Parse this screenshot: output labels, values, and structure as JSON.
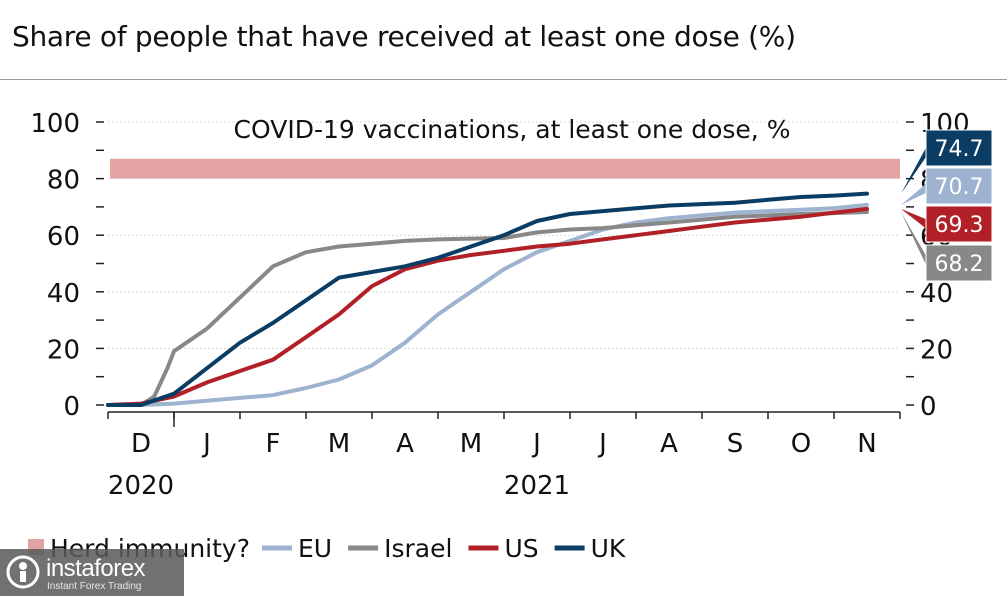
{
  "header": {
    "title": "Share of people that have received at least one dose (%)"
  },
  "chart_data": {
    "type": "line",
    "title": "COVID-19 vaccinations, at least one dose, %",
    "ylim": [
      0,
      100
    ],
    "y_ticks": [
      "0",
      "20",
      "40",
      "60",
      "80",
      "100"
    ],
    "x_month_labels": [
      "D",
      "J",
      "F",
      "M",
      "A",
      "M",
      "J",
      "J",
      "A",
      "S",
      "O",
      "N"
    ],
    "x_year_labels": [
      {
        "label": "2020",
        "month_index": 0
      },
      {
        "label": "2021",
        "month_index": 6
      }
    ],
    "x_range": [
      0,
      12
    ],
    "herd_band": {
      "name": "Herd immunity?",
      "y_range": [
        80,
        87
      ],
      "color": "#e3a3a3"
    },
    "series": [
      {
        "name": "EU",
        "color": "#9db3cf",
        "end_label": "70.7",
        "x": [
          0,
          0.5,
          1.0,
          1.5,
          2.0,
          2.5,
          3.0,
          3.5,
          4.0,
          4.5,
          5.0,
          5.5,
          6.0,
          6.5,
          7.0,
          7.5,
          8.0,
          8.5,
          9.0,
          9.5,
          10.0,
          10.5,
          11.0,
          11.5
        ],
        "values": [
          0,
          0,
          0.5,
          1.5,
          2.5,
          3.5,
          6,
          9,
          14,
          22,
          32,
          40,
          48,
          54,
          58,
          62,
          64.5,
          66,
          67,
          68,
          68.5,
          69,
          69.5,
          70.7
        ]
      },
      {
        "name": "Israel",
        "color": "#888888",
        "end_label": "68.2",
        "x": [
          0,
          0.5,
          0.7,
          0.9,
          1.0,
          1.5,
          2.0,
          2.5,
          3.0,
          3.5,
          4.0,
          4.5,
          5.0,
          5.5,
          6.0,
          6.5,
          7.0,
          7.5,
          8.0,
          8.5,
          9.0,
          9.5,
          10.0,
          10.5,
          11.0,
          11.5
        ],
        "values": [
          0,
          0,
          3,
          13,
          19,
          27,
          38,
          49,
          54,
          56,
          57,
          58,
          58.5,
          58.8,
          59,
          61,
          62,
          62.5,
          63.5,
          64.5,
          65.5,
          66.5,
          67,
          67.5,
          67.8,
          68.2
        ]
      },
      {
        "name": "US",
        "color": "#b02026",
        "end_label": "69.3",
        "x": [
          0,
          0.5,
          1.0,
          1.5,
          2.0,
          2.5,
          3.0,
          3.5,
          4.0,
          4.5,
          5.0,
          5.5,
          6.0,
          6.5,
          7.0,
          7.5,
          8.0,
          8.5,
          9.0,
          9.5,
          10.0,
          10.5,
          11.0,
          11.5
        ],
        "values": [
          0,
          0.5,
          3,
          8,
          12,
          16,
          24,
          32,
          42,
          48,
          51,
          53,
          54.5,
          56,
          57,
          58.5,
          60,
          61.5,
          63,
          64.5,
          65.5,
          66.5,
          68,
          69.3
        ]
      },
      {
        "name": "UK",
        "color": "#0b3d64",
        "end_label": "74.7",
        "x": [
          0,
          0.5,
          1.0,
          1.5,
          2.0,
          2.5,
          3.0,
          3.5,
          4.0,
          4.5,
          5.0,
          5.5,
          6.0,
          6.5,
          7.0,
          7.5,
          8.0,
          8.5,
          9.0,
          9.5,
          10.0,
          10.5,
          11.0,
          11.5
        ],
        "values": [
          0,
          0,
          4,
          13,
          22,
          29,
          37,
          45,
          47,
          49,
          52,
          56,
          60,
          65,
          67.5,
          68.5,
          69.5,
          70.5,
          71,
          71.5,
          72.5,
          73.5,
          74,
          74.7
        ]
      }
    ],
    "legend": [
      "Herd immunity?",
      "EU",
      "Israel",
      "US",
      "UK"
    ]
  },
  "watermark": {
    "name": "instaforex",
    "sub": "Instant Forex Trading"
  }
}
